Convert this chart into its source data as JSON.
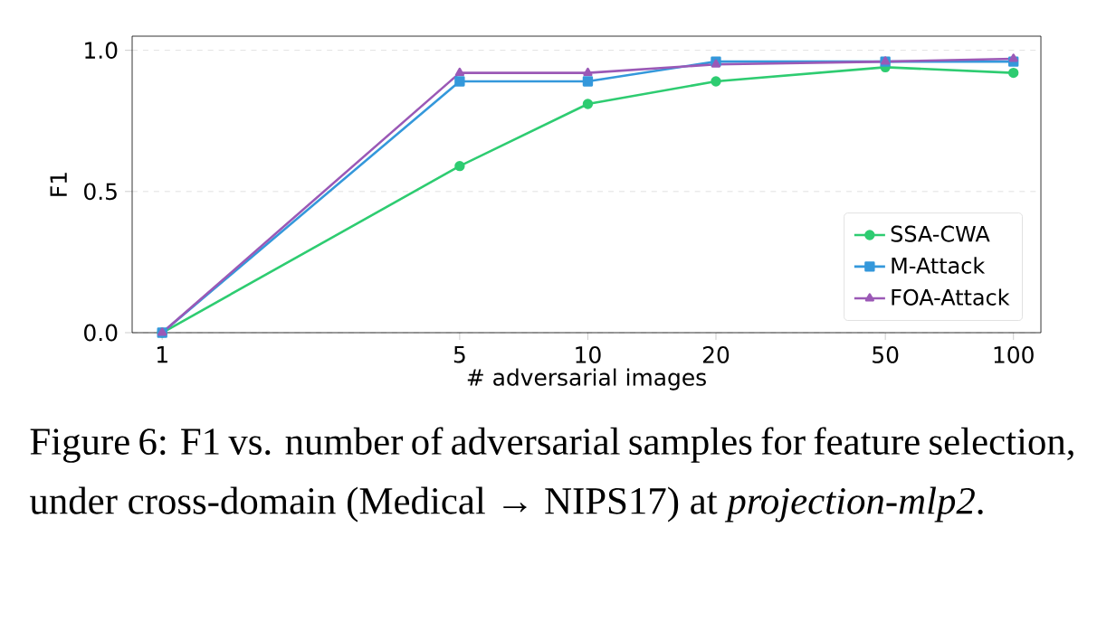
{
  "chart_data": {
    "type": "line",
    "xlabel": "# adversarial images",
    "ylabel": "F1",
    "log": "x",
    "grid": "y",
    "legend": "bottom right",
    "xlim": [
      0.85,
      116
    ],
    "xticks": [
      1,
      5,
      10,
      20,
      50,
      100
    ],
    "ylim": [
      0,
      1.05
    ],
    "yticks": [
      {
        "value": 0,
        "label": "0.0"
      },
      {
        "value": 0.5,
        "label": "0.5"
      },
      {
        "value": 1,
        "label": "1.0"
      }
    ],
    "x": [
      1,
      5,
      10,
      20,
      50,
      100
    ],
    "series": [
      {
        "name": "SSA-CWA",
        "color": "#2ecc71",
        "marker": "circle",
        "values": [
          0,
          0.59,
          0.81,
          0.89,
          0.94,
          0.92
        ]
      },
      {
        "name": "M-Attack",
        "color": "#3498db",
        "marker": "square",
        "values": [
          0,
          0.89,
          0.89,
          0.96,
          0.96,
          0.96
        ]
      },
      {
        "name": "FOA-Attack",
        "color": "#9b59b6",
        "marker": "triangle",
        "values": [
          0,
          0.92,
          0.92,
          0.95,
          0.96,
          0.97
        ]
      }
    ],
    "annotations": [
      "Figure 6: F1 vs. number of adversarial samples for feature selection, under cross-domain (Medical → NIPS17) at *projection-mlp2*."
    ]
  }
}
